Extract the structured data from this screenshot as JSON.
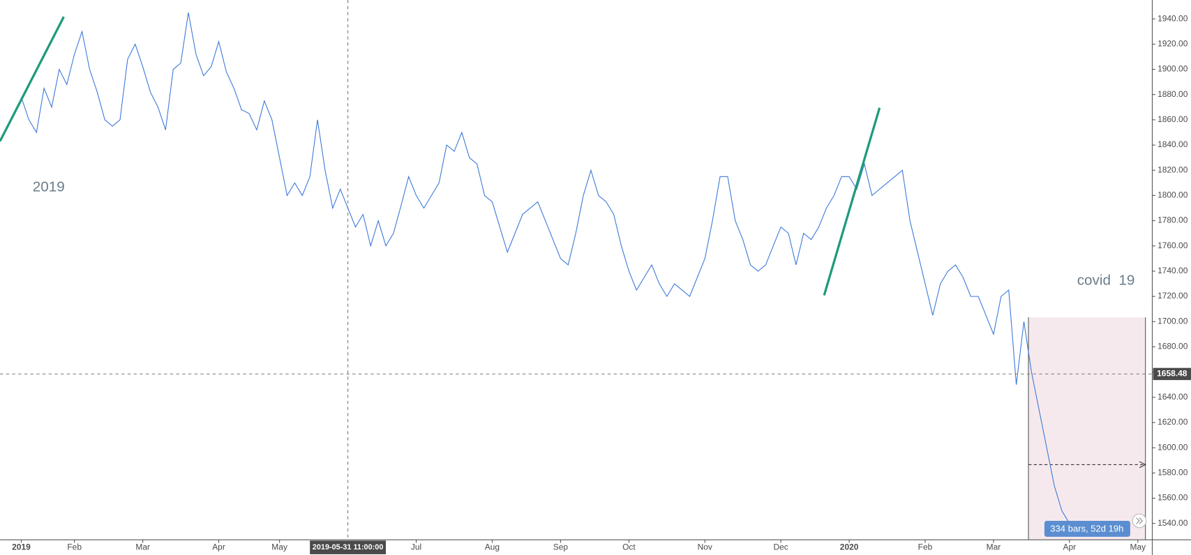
{
  "chart_data": {
    "type": "line",
    "categories": [
      "2019",
      null,
      null,
      null,
      null,
      null,
      null,
      "Feb",
      null,
      null,
      null,
      null,
      null,
      null,
      null,
      null,
      "Mar",
      null,
      null,
      null,
      null,
      null,
      null,
      null,
      null,
      null,
      "Apr",
      null,
      null,
      null,
      null,
      null,
      null,
      null,
      "May",
      null,
      null,
      null,
      null,
      null,
      null,
      null,
      null,
      null,
      null,
      null,
      null,
      null,
      null,
      null,
      null,
      null,
      "Jul",
      null,
      null,
      null,
      null,
      null,
      null,
      null,
      null,
      null,
      "Aug",
      null,
      null,
      null,
      null,
      null,
      null,
      null,
      null,
      "Sep",
      null,
      null,
      null,
      null,
      null,
      null,
      null,
      null,
      "Oct",
      null,
      null,
      null,
      null,
      null,
      null,
      null,
      null,
      null,
      "Nov",
      null,
      null,
      null,
      null,
      null,
      null,
      null,
      null,
      null,
      "Dec",
      null,
      null,
      null,
      null,
      null,
      null,
      null,
      null,
      "2020",
      null,
      null,
      null,
      null,
      null,
      null,
      null,
      null,
      null,
      "Feb",
      null,
      null,
      null,
      null,
      null,
      null,
      null,
      null,
      "Mar",
      null,
      null,
      null,
      null,
      null,
      null,
      null,
      null,
      null,
      "Apr",
      null,
      null,
      null,
      null,
      null,
      null,
      null,
      null,
      "May"
    ],
    "values": [
      1878,
      1860,
      1850,
      1885,
      1870,
      1900,
      1888,
      1912,
      1930,
      1900,
      1882,
      1860,
      1855,
      1860,
      1908,
      1920,
      1902,
      1882,
      1870,
      1852,
      1900,
      1905,
      1945,
      1912,
      1895,
      1902,
      1922,
      1898,
      1885,
      1868,
      1865,
      1852,
      1875,
      1860,
      1830,
      1800,
      1810,
      1800,
      1815,
      1860,
      1820,
      1790,
      1805,
      1790,
      1775,
      1785,
      1760,
      1780,
      1760,
      1770,
      1792,
      1815,
      1800,
      1790,
      1800,
      1810,
      1840,
      1835,
      1850,
      1830,
      1825,
      1800,
      1795,
      1775,
      1755,
      1770,
      1785,
      1790,
      1795,
      1780,
      1765,
      1750,
      1745,
      1770,
      1800,
      1820,
      1800,
      1795,
      1785,
      1760,
      1740,
      1725,
      1735,
      1745,
      1730,
      1720,
      1730,
      1725,
      1720,
      1735,
      1750,
      1780,
      1815,
      1815,
      1780,
      1765,
      1745,
      1740,
      1745,
      1760,
      1775,
      1770,
      1745,
      1770,
      1765,
      1775,
      1790,
      1800,
      1815,
      1815,
      1805,
      1825,
      1800,
      1805,
      1810,
      1815,
      1820,
      1780,
      1755,
      1730,
      1705,
      1730,
      1740,
      1745,
      1735,
      1720,
      1720,
      1705,
      1690,
      1720,
      1725,
      1650,
      1700,
      1660,
      1630,
      1600,
      1570,
      1550,
      1540,
      null,
      null,
      null,
      null,
      null,
      null,
      null,
      null,
      null
    ],
    "color": "#3b78d8",
    "ylim": [
      1527,
      1955
    ],
    "yticks": [
      {
        "value": 1540,
        "label": "1540.00"
      },
      {
        "value": 1560,
        "label": "1560.00"
      },
      {
        "value": 1580,
        "label": "1580.00"
      },
      {
        "value": 1600,
        "label": "1600.00"
      },
      {
        "value": 1620,
        "label": "1620.00"
      },
      {
        "value": 1640,
        "label": "1640.00"
      },
      {
        "value": 1660,
        "label": "1660.00"
      },
      {
        "value": 1680,
        "label": "1680.00"
      },
      {
        "value": 1700,
        "label": "1700.00"
      },
      {
        "value": 1720,
        "label": "1720.00"
      },
      {
        "value": 1740,
        "label": "1740.00"
      },
      {
        "value": 1760,
        "label": "1760.00"
      },
      {
        "value": 1780,
        "label": "1780.00"
      },
      {
        "value": 1800,
        "label": "1800.00"
      },
      {
        "value": 1820,
        "label": "1820.00"
      },
      {
        "value": 1840,
        "label": "1840.00"
      },
      {
        "value": 1860,
        "label": "1860.00"
      },
      {
        "value": 1880,
        "label": "1880.00"
      },
      {
        "value": 1900,
        "label": "1900.00"
      },
      {
        "value": 1920,
        "label": "1920.00"
      },
      {
        "value": 1940,
        "label": "1940.00"
      }
    ],
    "crosshair": {
      "price": 1658.48,
      "time_label": "2019-05-31 11:00:00"
    },
    "annotations": [
      "2019",
      "covid  19"
    ],
    "measure_label": "334 bars, 52d 19h"
  }
}
